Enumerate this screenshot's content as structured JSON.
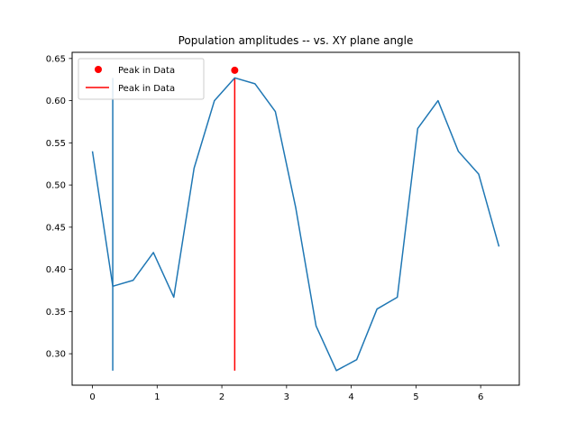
{
  "chart_data": {
    "type": "line",
    "title": "Population amplitudes -- vs. XY plane angle",
    "xlabel": "",
    "ylabel": "",
    "xlim": [
      -0.314,
      6.597
    ],
    "ylim": [
      0.2627,
      0.6573
    ],
    "xticks": [
      0,
      1,
      2,
      3,
      4,
      5,
      6
    ],
    "xtick_labels": [
      "0",
      "1",
      "2",
      "3",
      "4",
      "5",
      "6"
    ],
    "yticks": [
      0.3,
      0.35,
      0.4,
      0.45,
      0.5,
      0.55,
      0.6,
      0.65
    ],
    "ytick_labels": [
      "0.30",
      "0.35",
      "0.40",
      "0.45",
      "0.50",
      "0.55",
      "0.60",
      "0.65"
    ],
    "grid": false,
    "legend_position": "top-left",
    "series": [
      {
        "name": "",
        "color": "#1f77b4",
        "x": [
          0,
          0.314,
          0.628,
          0.942,
          1.257,
          1.571,
          1.885,
          2.199,
          2.513,
          2.827,
          3.142,
          3.456,
          3.77,
          4.084,
          4.398,
          4.712,
          5.027,
          5.341,
          5.655,
          5.969,
          6.283
        ],
        "y": [
          0.54,
          0.38,
          0.387,
          0.42,
          0.367,
          0.52,
          0.6,
          0.627,
          0.62,
          0.587,
          0.473,
          0.333,
          0.28,
          0.293,
          0.353,
          0.367,
          0.567,
          0.6,
          0.54,
          0.513,
          0.427
        ]
      }
    ],
    "vlines": [
      {
        "x": 0.314,
        "ymin": 0.28,
        "ymax": 0.627,
        "color": "#1f77b4",
        "legend": ""
      },
      {
        "x": 2.199,
        "ymin": 0.28,
        "ymax": 0.627,
        "color": "#ff0000",
        "legend": "Peak in Data"
      }
    ],
    "points": [
      {
        "x": 2.199,
        "y": 0.636,
        "color": "#ff0000",
        "legend": "Peak in Data"
      }
    ],
    "legend": [
      {
        "label": "Peak in Data",
        "marker": "dot",
        "color": "#ff0000"
      },
      {
        "label": "Peak in Data",
        "marker": "line",
        "color": "#ff0000"
      }
    ]
  }
}
